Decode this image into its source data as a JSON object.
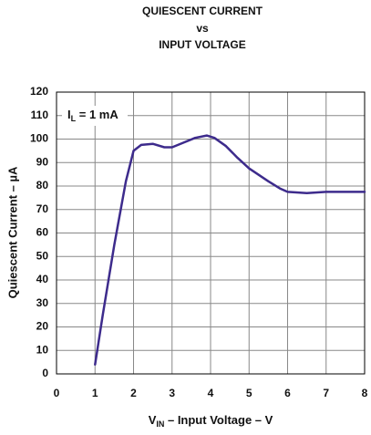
{
  "chart_data": {
    "type": "line",
    "title": [
      "QUIESCENT CURRENT",
      "vs",
      "INPUT VOLTAGE"
    ],
    "x_label": [
      "V",
      "IN",
      " – Input Voltage – V"
    ],
    "y_label": "Quiescent Current – µA",
    "annotation": [
      "I",
      "L",
      " = 1 mA"
    ],
    "x": [
      1.0,
      1.2,
      1.5,
      1.8,
      2.0,
      2.2,
      2.5,
      2.8,
      3.0,
      3.3,
      3.6,
      3.9,
      4.1,
      4.4,
      4.7,
      5.0,
      5.5,
      5.8,
      6.0,
      6.5,
      7.0,
      8.0
    ],
    "values": [
      4,
      25,
      55,
      82,
      95,
      97.5,
      98,
      96.5,
      96.5,
      98.5,
      100.5,
      101.5,
      100.5,
      97,
      92,
      87.5,
      82,
      79,
      77.5,
      77,
      77.5,
      77.5
    ],
    "color": "#3d2b8c",
    "xlim": [
      0,
      8
    ],
    "xticks": [
      0,
      1,
      2,
      3,
      4,
      5,
      6,
      7,
      8
    ],
    "ylim": [
      0,
      120
    ],
    "yticks": [
      0,
      10,
      20,
      30,
      40,
      50,
      60,
      70,
      80,
      90,
      100,
      110,
      120
    ],
    "grid": true
  }
}
